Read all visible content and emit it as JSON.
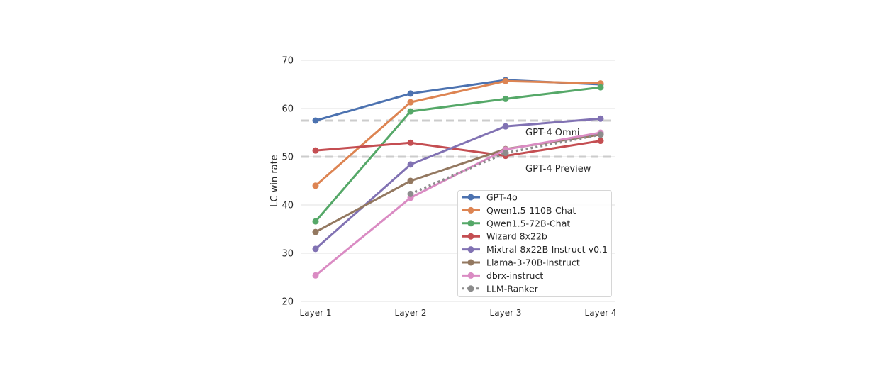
{
  "chart_data": {
    "type": "line",
    "title": "",
    "xlabel": "",
    "ylabel": "LC win rate",
    "ylim": [
      20,
      70
    ],
    "yticks": [
      20,
      30,
      40,
      50,
      60,
      70
    ],
    "grid": true,
    "legend_placement": "lower-right",
    "categories": [
      "Layer 1",
      "Layer 2",
      "Layer 3",
      "Layer 4"
    ],
    "series": [
      {
        "name": "GPT-4o",
        "color": "#4c72b0",
        "style": "solid",
        "values": [
          57.5,
          63.1,
          65.9,
          65.0
        ]
      },
      {
        "name": "Qwen1.5-110B-Chat",
        "color": "#dd8452",
        "style": "solid",
        "values": [
          44.0,
          61.3,
          65.7,
          65.2
        ]
      },
      {
        "name": "Qwen1.5-72B-Chat",
        "color": "#55a868",
        "style": "solid",
        "values": [
          36.6,
          59.4,
          62.0,
          64.4
        ]
      },
      {
        "name": "Wizard 8x22b",
        "color": "#c44e52",
        "style": "solid",
        "values": [
          51.3,
          52.9,
          50.2,
          53.3
        ]
      },
      {
        "name": "Mixtral-8x22B-Instruct-v0.1",
        "color": "#8172b3",
        "style": "solid",
        "values": [
          30.9,
          48.4,
          56.3,
          57.9
        ]
      },
      {
        "name": "Llama-3-70B-Instruct",
        "color": "#937860",
        "style": "solid",
        "values": [
          34.4,
          45.0,
          51.6,
          54.6
        ]
      },
      {
        "name": "dbrx-instruct",
        "color": "#da8bc3",
        "style": "solid",
        "values": [
          25.4,
          41.5,
          51.5,
          55.0
        ]
      },
      {
        "name": "LLM-Ranker",
        "color": "#8c8c8c",
        "style": "dotted",
        "values": [
          null,
          42.3,
          50.8,
          54.6
        ]
      }
    ],
    "reference_lines": [
      {
        "label": "GPT-4 Omni",
        "value": 57.5,
        "color": "#cccccc"
      },
      {
        "label": "GPT-4 Preview",
        "value": 50.0,
        "color": "#cccccc"
      }
    ]
  }
}
